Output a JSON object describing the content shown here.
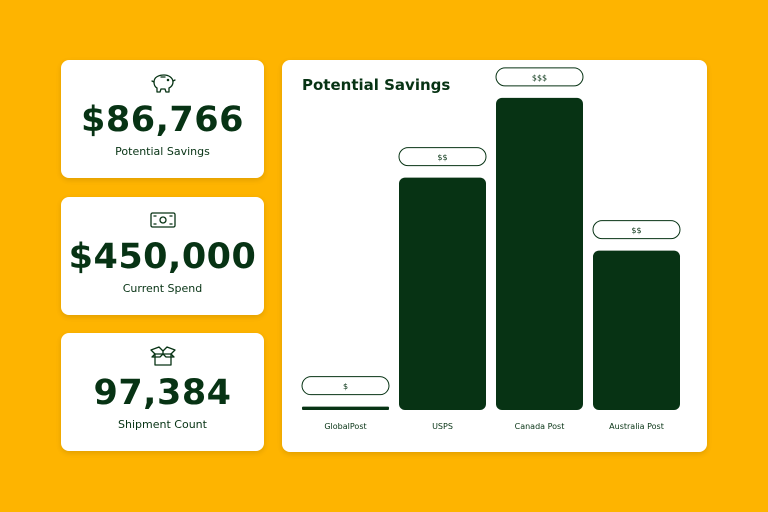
{
  "colors": {
    "background": "#FEB400",
    "card": "#FFFFFF",
    "brand_dark_green": "#073314"
  },
  "stats": [
    {
      "icon": "piggy-bank-icon",
      "value": "$86,766",
      "label": "Potential Savings"
    },
    {
      "icon": "cash-icon",
      "value": "$450,000",
      "label": "Current Spend"
    },
    {
      "icon": "box-icon",
      "value": "97,384",
      "label": "Shipment Count"
    }
  ],
  "chart_data": {
    "type": "bar",
    "title": "Potential Savings",
    "categories": [
      "GlobalPost",
      "USPS",
      "Canada Post",
      "Australia Post"
    ],
    "values": [
      1,
      70,
      94,
      48
    ],
    "ylim": [
      0,
      100
    ],
    "price_labels": [
      "$",
      "$$",
      "$$$",
      "$$"
    ],
    "grid": false,
    "xlabel": "",
    "ylabel": ""
  }
}
